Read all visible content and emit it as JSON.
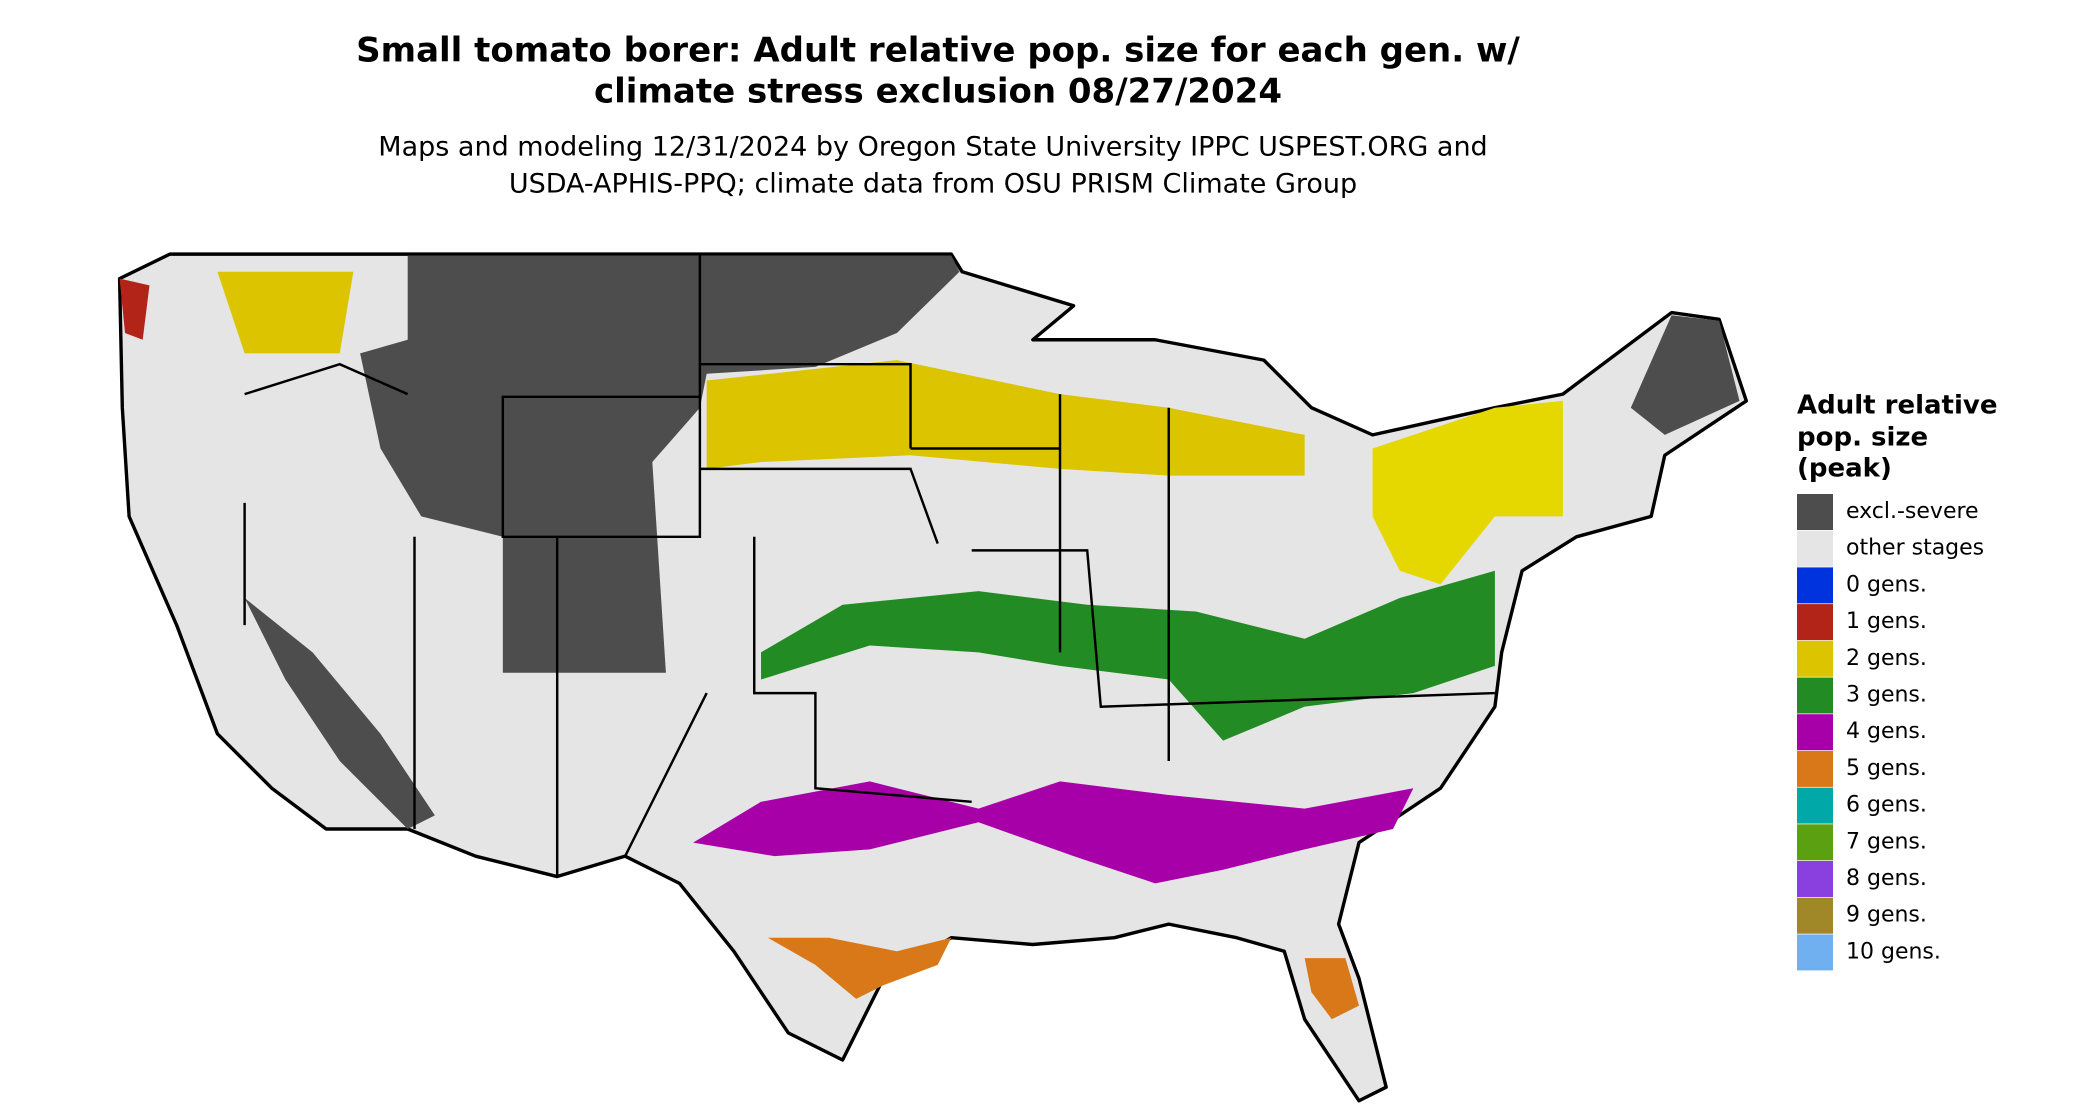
{
  "title": "Small tomato borer: Adult relative pop. size for each gen. w/ climate stress exclusion 08/27/2024",
  "title_lines": [
    "Small tomato borer: Adult relative pop. size for each gen. w/",
    "climate stress exclusion 08/27/2024"
  ],
  "subtitle_lines": [
    "Maps and modeling 12/31/2024 by Oregon State University IPPC USPEST.ORG and",
    "USDA-APHIS-PPQ; climate data from OSU PRISM Climate Group"
  ],
  "legend": {
    "title_lines": [
      "Adult relative",
      "pop. size",
      "(peak)"
    ],
    "items": [
      {
        "label": "excl.-severe",
        "color": "#4d4d4d"
      },
      {
        "label": "other stages",
        "color": "#e5e5e5"
      },
      {
        "label": "0 gens.",
        "color": "#0033dd"
      },
      {
        "label": "1 gens.",
        "color": "#b22418"
      },
      {
        "label": "2 gens.",
        "color": "#dcc400"
      },
      {
        "label": "3 gens.",
        "color": "#238b23"
      },
      {
        "label": "4 gens.",
        "color": "#a800a8"
      },
      {
        "label": "5 gens.",
        "color": "#d87818"
      },
      {
        "label": "6 gens.",
        "color": "#00a8a8"
      },
      {
        "label": "7 gens.",
        "color": "#5aa010"
      },
      {
        "label": "8 gens.",
        "color": "#8a40de"
      },
      {
        "label": "9 gens.",
        "color": "#a08828"
      },
      {
        "label": "10 gens.",
        "color": "#70b0f0"
      }
    ]
  }
}
